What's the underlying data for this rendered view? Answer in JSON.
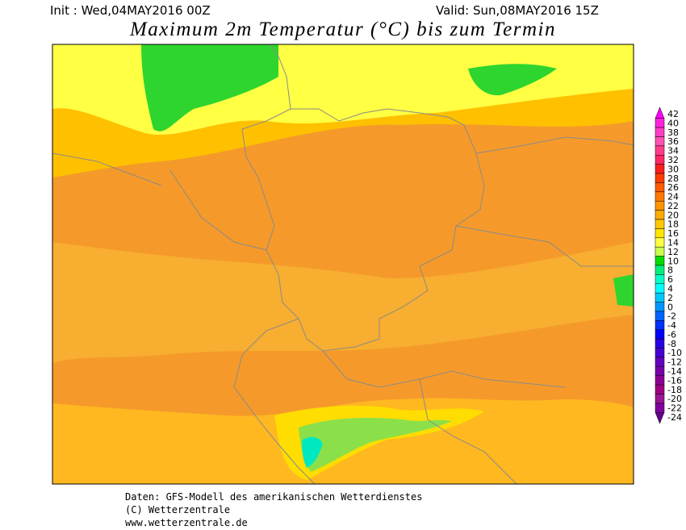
{
  "header": {
    "init": "Init : Wed,04MAY2016 00Z",
    "valid": "Valid: Sun,08MAY2016 15Z",
    "title": "Maximum 2m Temperatur (°C) bis zum Termin"
  },
  "colorbar": {
    "values": [
      42,
      40,
      38,
      36,
      34,
      32,
      30,
      28,
      26,
      24,
      22,
      20,
      18,
      16,
      14,
      12,
      10,
      8,
      6,
      4,
      2,
      0,
      -2,
      -4,
      -6,
      -8,
      -10,
      -12,
      -14,
      -16,
      -18,
      -20,
      -22,
      -24
    ],
    "colors": [
      "#ff00ff",
      "#ff22dd",
      "#ff3cc8",
      "#ff50b4",
      "#ff3c8c",
      "#ff2864",
      "#ff1e1e",
      "#ff3c00",
      "#ff5a00",
      "#ff7800",
      "#ff9600",
      "#ffaa00",
      "#ffc800",
      "#ffe600",
      "#ffff40",
      "#c8ff50",
      "#00dc00",
      "#00f07a",
      "#00ffc8",
      "#00ffff",
      "#00c8ff",
      "#0096ff",
      "#0064ff",
      "#0032ff",
      "#0000ff",
      "#2800e6",
      "#4600d2",
      "#6400be",
      "#7800aa",
      "#8c0096",
      "#a00082",
      "#9c1496",
      "#8200a0",
      "#64008c"
    ]
  },
  "footer": {
    "line1": "Daten: GFS-Modell des amerikanischen Wetterdienstes",
    "line2": "(C) Wetterzentrale",
    "line3": "www.wetterzentrale.de"
  }
}
